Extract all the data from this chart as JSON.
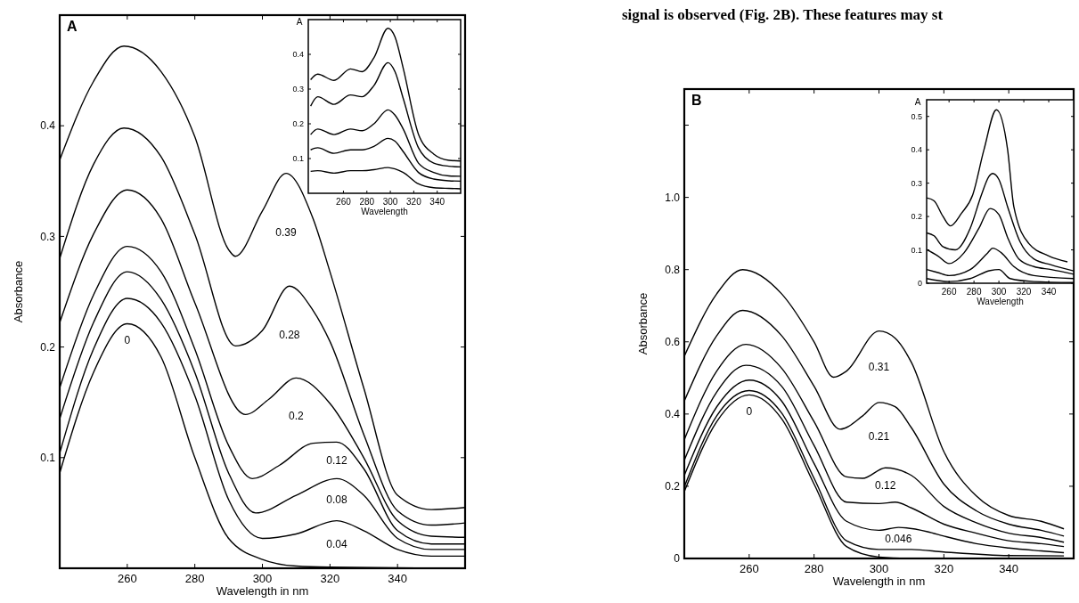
{
  "chart_data": [
    {
      "type": "line",
      "title": "A",
      "xlabel": "Wavelength in nm",
      "ylabel": "Absorbance",
      "xlim": [
        240,
        360
      ],
      "ylim": [
        0,
        0.5
      ],
      "xticks": [
        260,
        280,
        300,
        320,
        340
      ],
      "yticks": [
        0.1,
        0.2,
        0.3,
        0.4
      ],
      "grid": false,
      "marker": "none",
      "line_style": "solid",
      "series": [
        {
          "name": "0.39",
          "color": "#000000",
          "x": [
            240,
            250,
            259,
            270,
            280,
            290,
            292,
            300,
            307,
            315,
            320,
            330,
            340,
            350,
            360
          ],
          "values": [
            0.369,
            0.44,
            0.472,
            0.449,
            0.39,
            0.288,
            0.282,
            0.323,
            0.357,
            0.316,
            0.268,
            0.163,
            0.066,
            0.053,
            0.055
          ]
        },
        {
          "name": "0.28",
          "color": "#000000",
          "x": [
            240,
            250,
            259,
            270,
            280,
            292,
            300,
            308,
            315,
            320,
            330,
            340,
            350,
            360
          ],
          "values": [
            0.28,
            0.365,
            0.398,
            0.372,
            0.302,
            0.201,
            0.215,
            0.255,
            0.233,
            0.205,
            0.121,
            0.052,
            0.039,
            0.041
          ]
        },
        {
          "name": "0.2",
          "color": "#000000",
          "x": [
            240,
            250,
            260,
            270,
            280,
            295,
            302,
            310,
            320,
            330,
            340,
            350,
            360
          ],
          "values": [
            0.222,
            0.302,
            0.342,
            0.316,
            0.24,
            0.139,
            0.153,
            0.172,
            0.149,
            0.1,
            0.043,
            0.029,
            0.028
          ]
        },
        {
          "name": "0.12",
          "color": "#000000",
          "x": [
            240,
            250,
            260,
            270,
            280,
            290,
            297,
            305,
            315,
            322,
            330,
            340,
            350,
            360
          ],
          "values": [
            0.163,
            0.247,
            0.291,
            0.268,
            0.198,
            0.111,
            0.081,
            0.093,
            0.113,
            0.114,
            0.09,
            0.034,
            0.022,
            0.022
          ]
        },
        {
          "name": "0.08",
          "color": "#000000",
          "x": [
            240,
            250,
            260,
            270,
            280,
            290,
            298,
            310,
            322,
            330,
            340,
            350,
            360
          ],
          "values": [
            0.135,
            0.222,
            0.268,
            0.243,
            0.177,
            0.086,
            0.05,
            0.066,
            0.081,
            0.066,
            0.027,
            0.017,
            0.017
          ]
        },
        {
          "name": "0.04",
          "color": "#000000",
          "x": [
            240,
            250,
            260,
            270,
            280,
            290,
            300,
            310,
            322,
            330,
            340,
            350,
            360
          ],
          "values": [
            0.104,
            0.198,
            0.244,
            0.222,
            0.156,
            0.062,
            0.027,
            0.031,
            0.043,
            0.034,
            0.017,
            0.011,
            0.011
          ]
        },
        {
          "name": "0",
          "color": "#000000",
          "x": [
            240,
            250,
            260,
            270,
            280,
            290,
            300,
            310,
            320,
            360
          ],
          "values": [
            0.086,
            0.177,
            0.221,
            0.191,
            0.1,
            0.027,
            0.008,
            0.002,
            0.001,
            0
          ]
        }
      ]
    },
    {
      "type": "line",
      "xlabel": "Wavelength",
      "ylabel": "A",
      "xlim": [
        230,
        360
      ],
      "ylim": [
        0,
        0.5
      ],
      "xticks": [
        260,
        280,
        300,
        320,
        340
      ],
      "yticks": [
        0.1,
        0.2,
        0.3,
        0.4
      ],
      "grid": false,
      "marker": "none",
      "line_style": "solid",
      "x": [
        232,
        238,
        252,
        266,
        276,
        286,
        298,
        304,
        311,
        324,
        337,
        350,
        360
      ],
      "series": [
        {
          "color": "#000000",
          "values": [
            0.327,
            0.343,
            0.325,
            0.358,
            0.35,
            0.39,
            0.475,
            0.45,
            0.36,
            0.17,
            0.113,
            0.095,
            0.093
          ]
        },
        {
          "color": "#000000",
          "values": [
            0.251,
            0.278,
            0.256,
            0.283,
            0.278,
            0.31,
            0.376,
            0.35,
            0.273,
            0.131,
            0.087,
            0.078,
            0.076
          ]
        },
        {
          "color": "#000000",
          "values": [
            0.169,
            0.185,
            0.169,
            0.185,
            0.18,
            0.2,
            0.24,
            0.225,
            0.185,
            0.087,
            0.06,
            0.05,
            0.049
          ]
        },
        {
          "color": "#000000",
          "values": [
            0.125,
            0.131,
            0.115,
            0.125,
            0.125,
            0.135,
            0.158,
            0.15,
            0.12,
            0.06,
            0.041,
            0.036,
            0.035
          ]
        },
        {
          "color": "#000000",
          "values": [
            0.063,
            0.065,
            0.058,
            0.065,
            0.065,
            0.068,
            0.074,
            0.07,
            0.06,
            0.027,
            0.016,
            0.014,
            0.013
          ]
        }
      ]
    },
    {
      "type": "line",
      "title": "B",
      "xlabel": "Wavelength in nm",
      "ylabel": "Absorbance",
      "xlim": [
        240,
        360
      ],
      "ylim": [
        0,
        1.3
      ],
      "xticks": [
        260,
        280,
        300,
        320,
        340
      ],
      "yticks": [
        0,
        0.2,
        0.4,
        0.6,
        0.8,
        {
          "value": 1.0,
          "label": "1.0"
        },
        {
          "value": 1.2,
          "label": null
        }
      ],
      "grid": false,
      "marker": "none",
      "line_style": "solid",
      "series": [
        {
          "name": "0.31",
          "color": "#000000",
          "x": [
            240,
            250,
            258,
            270,
            280,
            286,
            290,
            300,
            305,
            310,
            320,
            330,
            340,
            350,
            357
          ],
          "values": [
            0.56,
            0.733,
            0.8,
            0.733,
            0.6,
            0.502,
            0.519,
            0.63,
            0.61,
            0.543,
            0.296,
            0.173,
            0.119,
            0.103,
            0.082
          ]
        },
        {
          "name": "0.21",
          "color": "#000000",
          "x": [
            240,
            250,
            258,
            270,
            280,
            288,
            295,
            300,
            305,
            310,
            320,
            330,
            340,
            350,
            357
          ],
          "values": [
            0.436,
            0.617,
            0.687,
            0.617,
            0.477,
            0.358,
            0.395,
            0.432,
            0.42,
            0.362,
            0.206,
            0.132,
            0.095,
            0.078,
            0.062
          ]
        },
        {
          "name": "0.12",
          "color": "#000000",
          "x": [
            240,
            250,
            259,
            270,
            280,
            290,
            295,
            302,
            310,
            320,
            330,
            340,
            350,
            357
          ],
          "values": [
            0.329,
            0.519,
            0.593,
            0.527,
            0.379,
            0.226,
            0.222,
            0.251,
            0.23,
            0.144,
            0.099,
            0.07,
            0.058,
            0.045
          ]
        },
        {
          "color": "#000000",
          "x": [
            240,
            250,
            259,
            270,
            280,
            290,
            300,
            305,
            310,
            320,
            330,
            340,
            350,
            357
          ],
          "values": [
            0.272,
            0.461,
            0.535,
            0.477,
            0.313,
            0.156,
            0.152,
            0.156,
            0.14,
            0.095,
            0.07,
            0.049,
            0.041,
            0.033
          ]
        },
        {
          "name": "0.046",
          "color": "#000000",
          "x": [
            240,
            250,
            260,
            270,
            280,
            290,
            300,
            306,
            315,
            320,
            330,
            340,
            350,
            357
          ],
          "values": [
            0.23,
            0.42,
            0.494,
            0.436,
            0.263,
            0.103,
            0.078,
            0.086,
            0.074,
            0.062,
            0.041,
            0.029,
            0.021,
            0.016
          ]
        },
        {
          "color": "#000000",
          "x": [
            240,
            250,
            260,
            270,
            280,
            290,
            300,
            310,
            320,
            340,
            357
          ],
          "values": [
            0.198,
            0.395,
            0.465,
            0.403,
            0.222,
            0.049,
            0.025,
            0.025,
            0.018,
            0.008,
            0.007
          ]
        },
        {
          "name": "0",
          "color": "#000000",
          "x": [
            240,
            250,
            260,
            270,
            280,
            290,
            300,
            310,
            357
          ],
          "values": [
            0.185,
            0.379,
            0.453,
            0.387,
            0.206,
            0.033,
            0.004,
            0,
            0
          ]
        }
      ],
      "annotations": [
        "signal is observed (Fig. 2B). These features may st"
      ]
    },
    {
      "type": "line",
      "xlabel": "Wavelength",
      "ylabel": "A",
      "xlim": [
        242,
        360
      ],
      "ylim": [
        0,
        0.55
      ],
      "xticks": [
        260,
        280,
        300,
        320,
        340
      ],
      "yticks": [
        0,
        0.1,
        0.2,
        0.3,
        0.4,
        0.5
      ],
      "grid": false,
      "marker": "none",
      "line_style": "solid",
      "series": [
        {
          "color": "#000000",
          "x": [
            242,
            248,
            255,
            261,
            270,
            279,
            288,
            298,
            307,
            312,
            324,
            340,
            355
          ],
          "values": [
            0.256,
            0.247,
            0.201,
            0.172,
            0.21,
            0.265,
            0.4,
            0.52,
            0.4,
            0.229,
            0.119,
            0.082,
            0.064
          ]
        },
        {
          "color": "#000000",
          "x": [
            242,
            248,
            255,
            265,
            277,
            286,
            292,
            295,
            300,
            307,
            317,
            328,
            342,
            360
          ],
          "values": [
            0.151,
            0.142,
            0.11,
            0.1,
            0.165,
            0.265,
            0.32,
            0.329,
            0.311,
            0.229,
            0.124,
            0.073,
            0.055,
            0.037
          ]
        },
        {
          "color": "#000000",
          "x": [
            242,
            251,
            260,
            272,
            284,
            293,
            300,
            307,
            316,
            328,
            342,
            360
          ],
          "values": [
            0.101,
            0.082,
            0.059,
            0.091,
            0.165,
            0.224,
            0.206,
            0.137,
            0.073,
            0.05,
            0.041,
            0.027
          ]
        },
        {
          "color": "#000000",
          "x": [
            242,
            251,
            260,
            277,
            291,
            295,
            302,
            312,
            328,
            360
          ],
          "values": [
            0.041,
            0.032,
            0.023,
            0.041,
            0.091,
            0.105,
            0.091,
            0.05,
            0.023,
            0.014
          ]
        },
        {
          "color": "#000000",
          "x": [
            242,
            260,
            277,
            293,
            300,
            309,
            328,
            360
          ],
          "values": [
            0.014,
            0.005,
            0.014,
            0.038,
            0.041,
            0.014,
            0.005,
            0.002
          ]
        }
      ]
    }
  ]
}
